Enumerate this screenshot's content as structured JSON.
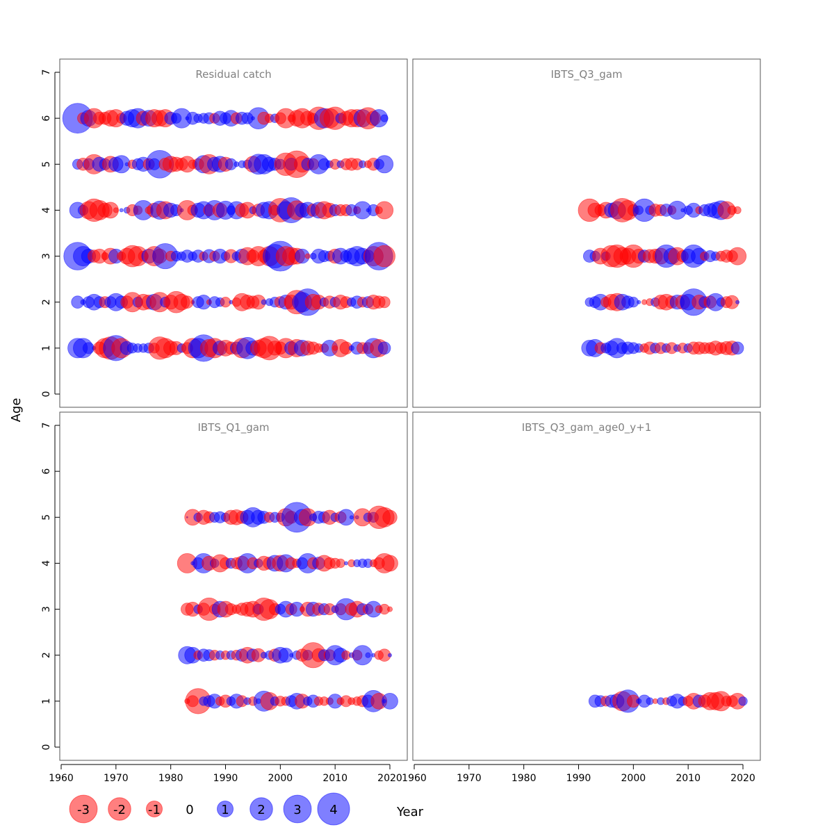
{
  "chart_data": {
    "type": "scatter",
    "subtype": "bubble residual plot",
    "xlabel": "Year",
    "ylabel": "Age",
    "xlim": [
      1960,
      2023
    ],
    "ylim": [
      0,
      7
    ],
    "x_ticks": [
      1960,
      1970,
      1980,
      1990,
      2000,
      2010,
      2020
    ],
    "y_ticks": [
      0,
      1,
      2,
      3,
      4,
      5,
      6,
      7
    ],
    "colors": {
      "negative": "#ff0000",
      "positive": "#0000ff"
    },
    "legend": {
      "placement": "bottom-left",
      "values": [
        -3,
        -2,
        -1,
        0,
        1,
        2,
        3,
        4
      ],
      "labels": [
        "-3",
        "-2",
        "-1",
        "0",
        "1",
        "2",
        "3",
        "4"
      ]
    },
    "panels": [
      {
        "title": "Residual catch",
        "start_year": 1963,
        "ages": {
          "6": [
            3.5,
            -0.5,
            1,
            -1.5,
            -0.6,
            -0.6,
            -1,
            -1.2,
            -0.4,
            0.8,
            1.2,
            1.5,
            -0.8,
            1,
            -1.2,
            -1,
            -1.2,
            0.6,
            0.4,
            1.5,
            0.05,
            0.6,
            0.3,
            0.4,
            0.5,
            -0.4,
            0.8,
            0.5,
            1,
            -0.5,
            0.6,
            0.5,
            0.05,
            1.8,
            -0.6,
            -0.3,
            0.3,
            -0.5,
            -1.5,
            -0.2,
            -1,
            -1.5,
            -0.8,
            -0.4,
            -2,
            1.5,
            -1.5,
            -2,
            0.4,
            -0.8,
            -1.2,
            -1.2,
            1.2,
            -1.8,
            -0.8,
            1.2,
            0.2
          ],
          "5": [
            0.4,
            -0.6,
            0.5,
            -1.5,
            0.8,
            0.5,
            -1,
            0.8,
            1.2,
            0.05,
            -0.3,
            0.5,
            0.8,
            -0.5,
            0.5,
            3,
            -0.6,
            -1,
            -0.8,
            -0.6,
            -1,
            -0.3,
            -0.5,
            1.2,
            -1.5,
            0.8,
            1,
            -0.8,
            0.5,
            0.1,
            0.2,
            0.3,
            -1,
            1.6,
            1.5,
            0.8,
            0.6,
            0.4,
            -2,
            0.6,
            -2.8,
            -1,
            0.6,
            -0.5,
            1.5,
            0.5,
            0.2,
            -0.4,
            0.2,
            -0.5,
            -0.6,
            -0.5,
            0.2,
            -0.2,
            -0.6,
            0.4,
            1.2
          ],
          "4": [
            1,
            0.4,
            -1.2,
            -2,
            -1.5,
            -0.8,
            -1,
            -0.1,
            0.05,
            0.15,
            -0.5,
            -0.3,
            1.5,
            -0.2,
            -0.8,
            1.3,
            -1.2,
            0.8,
            0.5,
            0.05,
            -1.5,
            -0.4,
            0.8,
            1.2,
            -0.5,
            1.5,
            -0.8,
            1.3,
            0.3,
            1.2,
            -0.7,
            -1,
            0.2,
            -0.6,
            1,
            1.2,
            -0.4,
            -2.2,
            1.2,
            2.5,
            -1.4,
            0.8,
            1,
            -0.6,
            1,
            -1.2,
            -0.8,
            0.5,
            -0.5,
            -0.5,
            0.5,
            -0.2,
            1.2,
            0.05,
            0.5,
            -0.2,
            -1.2
          ],
          "3": [
            3,
            1.5,
            0.8,
            -0.6,
            -0.8,
            -0.2,
            -1,
            0.8,
            -0.3,
            -1,
            -1.8,
            -1.5,
            -0.4,
            0.8,
            -1.5,
            -0.8,
            2.5,
            -0.4,
            0.4,
            0.3,
            0.6,
            0.3,
            0.6,
            -0.3,
            0.7,
            -0.4,
            0.8,
            0.3,
            -0.7,
            0.3,
            0.8,
            -1.2,
            -0.6,
            -1.5,
            -0.6,
            -1.5,
            2.2,
            3.5,
            -1.5,
            -1.2,
            -1,
            0.8,
            -0.1,
            0.15,
            0.8,
            0.5,
            0.4,
            -0.8,
            1,
            0.5,
            1,
            1.5,
            1,
            0.6,
            -1.5,
            3,
            -1.8
          ],
          "2": [
            0.6,
            0.1,
            0.5,
            1,
            0.5,
            -0.5,
            0.5,
            1.2,
            0.6,
            -0.6,
            -1.5,
            0.4,
            -1,
            -0.8,
            1,
            -1.5,
            0.4,
            -0.8,
            -1.8,
            -1,
            -0.6,
            -0.05,
            0.5,
            0.8,
            -0.1,
            0.5,
            0.3,
            -0.4,
            0.05,
            -0.3,
            -1.2,
            -0.8,
            -0.6,
            -0.8,
            0.1,
            0.2,
            0.4,
            -0.5,
            0.8,
            -0.8,
            -2.2,
            1.5,
            2.8,
            -1,
            -0.8,
            0.3,
            -0.6,
            0.4,
            -0.8,
            -0.5,
            0.3,
            0.6,
            -0.4,
            0.5,
            -0.8,
            -0.6,
            -0.5
          ],
          "1": [
            1.5,
            1.5,
            0.5,
            0.05,
            -0.6,
            -1.5,
            -2,
            2.5,
            -1.5,
            0.7,
            0.4,
            0.3,
            0.3,
            0.4,
            -0.4,
            -2,
            -1.5,
            -0.8,
            -0.7,
            0.3,
            -0.5,
            -1.5,
            1.5,
            2.8,
            -1.2,
            -1.5,
            0.8,
            -1,
            -0.6,
            0.6,
            -1.5,
            1.8,
            0.8,
            -1,
            -1.5,
            -2.2,
            -0.8,
            -0.6,
            -1.5,
            0.7,
            -1.2,
            1,
            -0.8,
            -0.6,
            -0.3,
            -0.3,
            1,
            -0.1,
            -1.2,
            -0.6,
            0.1,
            0.6,
            -0.5,
            -0.5,
            1.5,
            -1.2,
            0.6
          ]
        }
      },
      {
        "title": "IBTS_Q3_gam",
        "start_year": 1992,
        "ages": {
          "4": [
            -2,
            -0.8,
            -0.5,
            -1,
            0.8,
            1.2,
            -2.2,
            -1.5,
            -0.5,
            0.3,
            2,
            0.3,
            -0.6,
            -0.5,
            0.6,
            -0.3,
            1.3,
            0.05,
            0.3,
            0.8,
            -0.2,
            0.5,
            0.7,
            1,
            1.4,
            -1.2,
            -0.3,
            -0.2
          ],
          "3": [
            0.6,
            0.4,
            -1,
            0.3,
            -1.8,
            -2,
            -1.2,
            -1,
            -2,
            -0.8,
            0.6,
            -0.7,
            -0.8,
            -1,
            2,
            1,
            -1.2,
            -0.5,
            0.8,
            2,
            1,
            -0.3,
            0.5,
            0.3,
            -0.4,
            -0.6,
            -0.5,
            -1.2
          ],
          "2": [
            0.3,
            0.5,
            1,
            -0.4,
            -1,
            -1.2,
            1,
            0.6,
            0.4,
            0.05,
            -0.1,
            -0.2,
            0.3,
            -0.8,
            -1,
            -0.6,
            0.8,
            -0.8,
            1,
            2.8,
            -0.8,
            0.5,
            -0.6,
            1.2,
            0.3,
            -0.5,
            -0.7,
            0.05
          ],
          "1": [
            1,
            1.2,
            -0.5,
            0.4,
            0.8,
            1.5,
            0.5,
            0.6,
            0.5,
            0.3,
            -0.3,
            -0.6,
            0.4,
            -0.5,
            0.3,
            -0.5,
            0.2,
            -0.4,
            0.3,
            -0.6,
            -0.6,
            -0.5,
            -0.5,
            -0.8,
            -0.5,
            -0.7,
            -0.8,
            0.6
          ]
        }
      },
      {
        "title": "IBTS_Q1_gam",
        "start_year": 1983,
        "ages": {
          "5": [
            0,
            -1,
            0.3,
            -0.8,
            -0.5,
            0.4,
            0.5,
            0.3,
            -0.8,
            -0.9,
            -0.6,
            0.8,
            1.5,
            0.8,
            0.6,
            -0.4,
            0.4,
            0.3,
            -1.2,
            -0.6,
            3.5,
            1,
            -1.2,
            0.2,
            0.6,
            0.5,
            -0.8,
            0.3,
            -0.5,
            1,
            0.05,
            0.05,
            -1.2,
            0.3,
            0.4,
            -2,
            -1.5,
            -0.8
          ],
          "4": [
            -1.5,
            0.05,
            0.5,
            1.5,
            -0.8,
            0.3,
            -1.2,
            -0.5,
            0.4,
            -0.5,
            -0.8,
            1.5,
            -0.5,
            0.3,
            -0.8,
            -0.6,
            1,
            -1,
            1.2,
            -0.5,
            -0.3,
            0.5,
            1.5,
            -0.5,
            0.6,
            -1,
            -0.5,
            -0.4,
            -0.3,
            0.05,
            -0.2,
            0.2,
            0.3,
            0.3,
            -0.2,
            -0.5,
            -1.5,
            -1
          ],
          "3": [
            -0.6,
            -0.8,
            0.3,
            -0.6,
            -2,
            -0.4,
            1,
            -1,
            -0.5,
            -0.3,
            -0.6,
            -0.8,
            -1,
            0.4,
            -2,
            -1.5,
            -0.5,
            0.4,
            1,
            -0.5,
            0.8,
            -0.1,
            -0.8,
            0.8,
            -0.6,
            0.5,
            -0.5,
            0.2,
            -0.5,
            1.8,
            -0.6,
            -1,
            0.5,
            -0.4,
            1,
            -0.2,
            -0.4,
            -0.1
          ],
          "2": [
            1.2,
            1,
            -0.3,
            0.6,
            0.5,
            -0.4,
            0.3,
            -0.3,
            0.3,
            -0.4,
            0.6,
            -1,
            0.6,
            -0.7,
            0.15,
            0.3,
            -0.6,
            1,
            0.8,
            0.05,
            0.3,
            -0.6,
            0.4,
            -2.5,
            -0.7,
            0.5,
            -0.5,
            1.5,
            0.8,
            -0.3,
            0.1,
            -0.4,
            1.5,
            0.1,
            0.05,
            -0.3,
            -0.6,
            0.05
          ],
          "1": [
            -0.1,
            -0.5,
            -2.5,
            0.3,
            0.5,
            0.8,
            -0.3,
            -0.6,
            0.3,
            0.8,
            -0.5,
            0.2,
            -0.3,
            0.1,
            1.6,
            -1.2,
            0.3,
            -0.4,
            -0.3,
            0.5,
            1,
            -0.8,
            0.3,
            0.6,
            -0.3,
            -0.3,
            -0.2,
            0.8,
            -0.2,
            -0.5,
            -0.2,
            -0.3,
            -0.5,
            0.6,
            1.8,
            -1,
            0.05,
            1
          ]
        }
      },
      {
        "title": "IBTS_Q3_gam_age0_y+1",
        "start_year": 1993,
        "ages": {
          "1": [
            0.6,
            0.5,
            -0.4,
            0.6,
            0.8,
            -1.5,
            2,
            -0.6,
            0.1,
            0.6,
            0.2,
            -0.1,
            0.2,
            -0.2,
            0.4,
            0.8,
            0.3,
            -0.4,
            -1,
            0.6,
            -0.6,
            -1.2,
            -1.2,
            -1.5,
            -0.4,
            -0.5,
            -1,
            0.3
          ]
        }
      }
    ]
  }
}
